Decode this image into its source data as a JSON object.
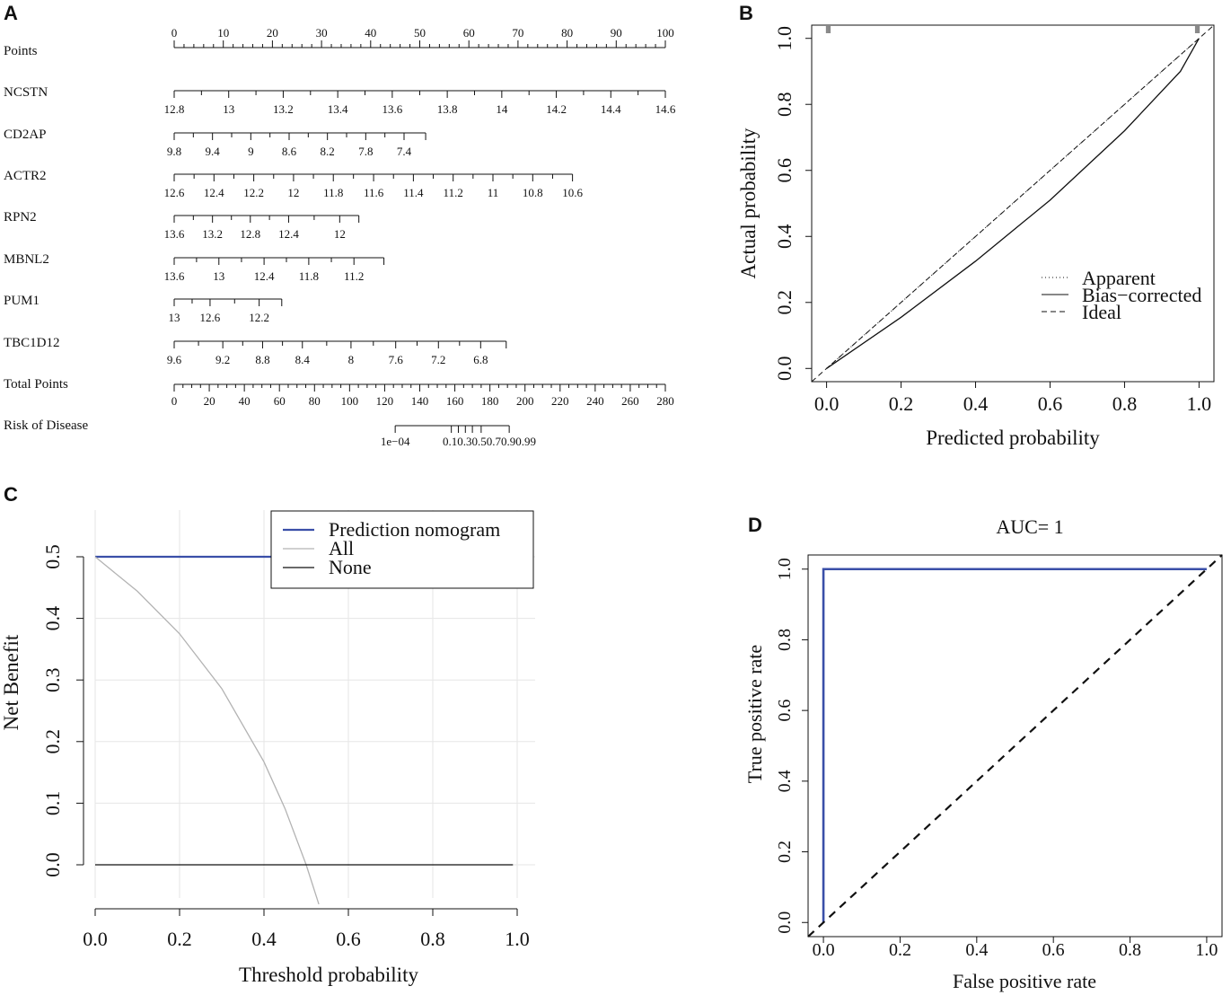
{
  "panels": {
    "a": "A",
    "b": "B",
    "c": "C",
    "d": "D"
  },
  "chart_data": [
    {
      "type": "nomogram",
      "panel": "A",
      "points_scale": {
        "name": "Points",
        "ticks": [
          0,
          10,
          20,
          30,
          40,
          50,
          60,
          70,
          80,
          90,
          100
        ]
      },
      "variables": [
        {
          "name": "NCSTN",
          "labels": [
            "12.8",
            "13",
            "13.2",
            "13.4",
            "13.6",
            "13.8",
            "14",
            "14.2",
            "14.4",
            "14.6"
          ],
          "points": [
            0,
            11.1,
            22.2,
            33.3,
            44.4,
            55.6,
            66.7,
            77.8,
            88.9,
            100
          ]
        },
        {
          "name": "CD2AP",
          "labels": [
            "9.8",
            "9.4",
            "9",
            "8.6",
            "8.2",
            "7.8",
            "7.4"
          ],
          "points": [
            0,
            7.8,
            15.6,
            23.4,
            31.2,
            39.0,
            46.8
          ],
          "max_points": 51.2
        },
        {
          "name": "ACTR2",
          "labels": [
            "12.6",
            "12.4",
            "12.2",
            "12",
            "11.8",
            "11.6",
            "11.4",
            "11.2",
            "11",
            "10.8",
            "10.6"
          ],
          "points": [
            0,
            8.1,
            16.2,
            24.3,
            32.4,
            40.6,
            48.7,
            56.8,
            64.9,
            73.0,
            81.1
          ]
        },
        {
          "name": "RPN2",
          "labels": [
            "13.6",
            "13.2",
            "12.8",
            "12.4",
            "12"
          ],
          "points": [
            0,
            7.8,
            15.5,
            23.3,
            33.7
          ],
          "max_points": 37.6
        },
        {
          "name": "MBNL2",
          "labels": [
            "13.6",
            "13",
            "12.4",
            "11.8",
            "11.2"
          ],
          "points": [
            0,
            9.1,
            18.3,
            27.4,
            36.6
          ],
          "max_points": 42.7
        },
        {
          "name": "PUM1",
          "labels": [
            "13",
            "12.6",
            "12.2"
          ],
          "points": [
            0,
            7.3,
            17.3
          ],
          "max_points": 21.9
        },
        {
          "name": "TBC1D12",
          "labels": [
            "9.6",
            "9.2",
            "8.8",
            "8.4",
            "8",
            "7.6",
            "7.2",
            "6.8"
          ],
          "points": [
            0,
            9.9,
            18.0,
            26.1,
            36.0,
            45.1,
            53.8,
            62.4
          ],
          "max_points": 67.6
        }
      ],
      "total_points": {
        "name": "Total Points",
        "ticks": [
          0,
          20,
          40,
          60,
          80,
          100,
          120,
          140,
          160,
          180,
          200,
          220,
          240,
          260,
          280
        ]
      },
      "risk": {
        "name": "Risk of Disease",
        "labels": [
          "1e−04",
          "0.1",
          "0.3",
          "0.5",
          "0.7",
          "0.9",
          "0.99"
        ],
        "total_points": [
          126,
          158,
          162,
          166,
          170,
          175,
          191
        ],
        "overlap_label": "0.10.30.50.70.90.99",
        "range": [
          126,
          191
        ]
      }
    },
    {
      "type": "line",
      "panel": "B",
      "title": "",
      "xlabel": "Predicted probability",
      "ylabel": "Actual probability",
      "xlim": [
        -0.04,
        1.04
      ],
      "ylim": [
        -0.04,
        1.04
      ],
      "ticks": [
        "0.0",
        "0.2",
        "0.4",
        "0.6",
        "0.8",
        "1.0"
      ],
      "tick_values": [
        0,
        0.2,
        0.4,
        0.6,
        0.8,
        1.0
      ],
      "legend": [
        "Apparent",
        "Bias−corrected",
        "Ideal"
      ],
      "legend_position": "bottom-right",
      "series": [
        {
          "name": "Apparent",
          "style": "dotted",
          "x": [
            0,
            1
          ],
          "y": [
            0,
            1
          ]
        },
        {
          "name": "Bias−corrected",
          "style": "solid",
          "x": [
            0,
            0.2,
            0.4,
            0.6,
            0.8,
            0.95,
            1.0
          ],
          "y": [
            0,
            0.155,
            0.325,
            0.51,
            0.72,
            0.9,
            1.0
          ]
        },
        {
          "name": "Ideal",
          "style": "dashed",
          "x": [
            -0.04,
            1.04
          ],
          "y": [
            -0.04,
            1.04
          ]
        }
      ],
      "rug": {
        "x": [
          0,
          0.003,
          0.006,
          0.009,
          0.991,
          0.994,
          0.997,
          1.0
        ]
      }
    },
    {
      "type": "line",
      "panel": "C",
      "xlabel": "Threshold probability",
      "ylabel": "Net Benefit",
      "xlim": [
        0,
        1.0
      ],
      "ylim": [
        -0.07,
        0.56
      ],
      "xticks": [
        "0.0",
        "0.2",
        "0.4",
        "0.6",
        "0.8",
        "1.0"
      ],
      "xtick_values": [
        0,
        0.2,
        0.4,
        0.6,
        0.8,
        1.0
      ],
      "yticks": [
        "0.0",
        "0.1",
        "0.2",
        "0.3",
        "0.4",
        "0.5"
      ],
      "ytick_values": [
        0,
        0.1,
        0.2,
        0.3,
        0.4,
        0.5
      ],
      "legend": [
        "Prediction nomogram",
        "All",
        "None"
      ],
      "legend_position": "top-right",
      "series": [
        {
          "name": "Prediction nomogram",
          "color": "#3a4fa8",
          "x": [
            0,
            0.42
          ],
          "y": [
            0.5,
            0.5
          ]
        },
        {
          "name": "All",
          "color": "#b3b3b3",
          "x": [
            0,
            0.1,
            0.2,
            0.3,
            0.4,
            0.45,
            0.5,
            0.53
          ],
          "y": [
            0.5,
            0.444,
            0.375,
            0.286,
            0.167,
            0.091,
            0.0,
            -0.064
          ]
        },
        {
          "name": "None",
          "color": "#111111",
          "x": [
            0,
            0.99
          ],
          "y": [
            0,
            0
          ]
        }
      ]
    },
    {
      "type": "line",
      "panel": "D",
      "title": "AUC= 1",
      "xlabel": "False positive rate",
      "ylabel": "True positive rate",
      "xlim": [
        -0.04,
        1.04
      ],
      "ylim": [
        -0.04,
        1.04
      ],
      "ticks": [
        "0.0",
        "0.2",
        "0.4",
        "0.6",
        "0.8",
        "1.0"
      ],
      "tick_values": [
        0,
        0.2,
        0.4,
        0.6,
        0.8,
        1.0
      ],
      "series": [
        {
          "name": "ROC",
          "color": "#3a4fa8",
          "x": [
            0,
            0,
            1
          ],
          "y": [
            0,
            1,
            1
          ]
        },
        {
          "name": "Chance",
          "style": "dashed",
          "color": "#111111",
          "x": [
            -0.04,
            1.04
          ],
          "y": [
            -0.04,
            1.04
          ]
        }
      ]
    }
  ]
}
